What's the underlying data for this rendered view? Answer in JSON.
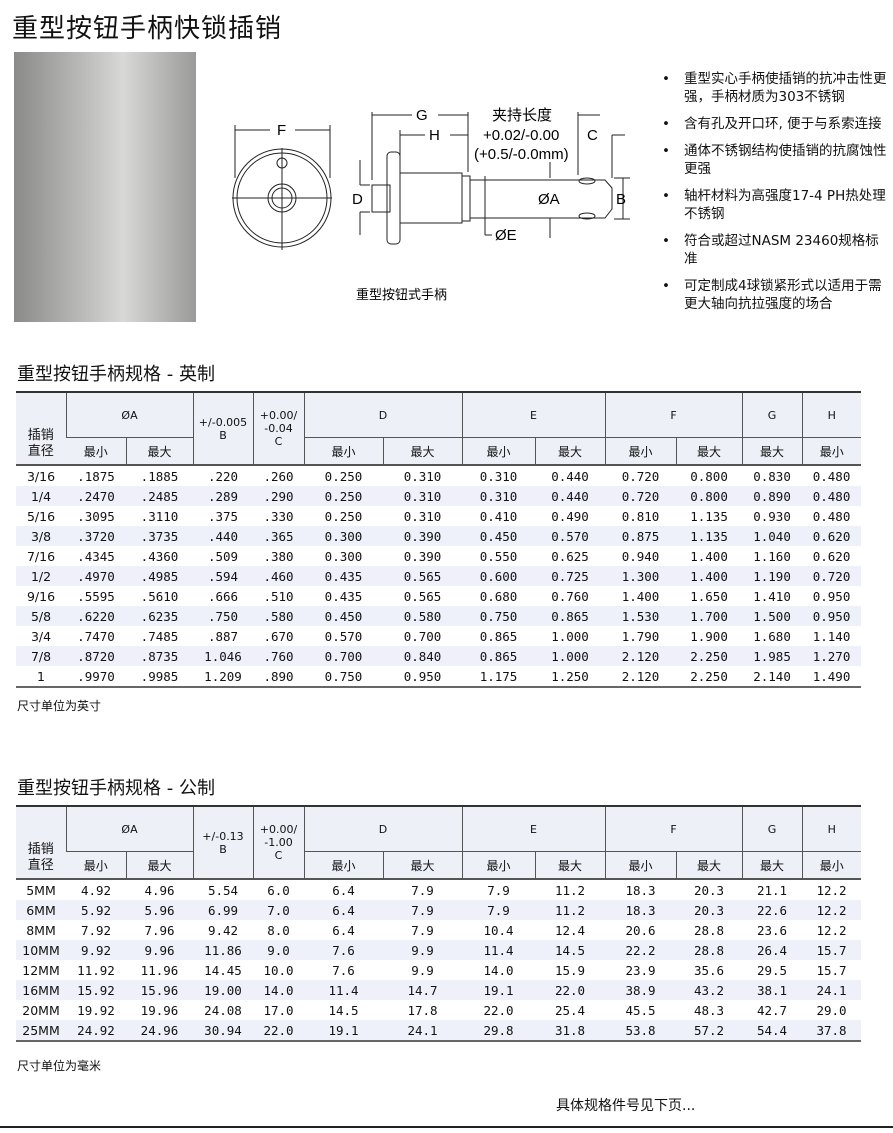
{
  "title": "重型按钮手柄快锁插销",
  "diagram": {
    "caption": "重型按钮式手柄",
    "grip_label": "夹持长度",
    "grip_tol_in": "+0.02/-0.00",
    "grip_tol_mm": "(+0.5/-0.0mm)",
    "labels": {
      "F": "F",
      "G": "G",
      "H": "H",
      "C": "C",
      "D": "D",
      "A": "ØA",
      "E": "ØE",
      "B": "B"
    }
  },
  "features": [
    "重型实心手柄使插销的抗冲击性更强，手柄材质为303不锈钢",
    "含有孔及开口环, 便于与系索连接",
    "通体不锈钢结构使插销的抗腐蚀性更强",
    "轴杆材料为高强度17-4 PH热处理不锈钢",
    "符合或超过NASM 23460规格标准",
    "可定制成4球锁紧形式以适用于需更大轴向抗拉强度的场合"
  ],
  "header": {
    "dia": "插销直径",
    "A": "ØA",
    "min": "最小",
    "max": "最大",
    "D": "D",
    "E": "E",
    "F": "F",
    "G": "G",
    "H": "H",
    "Bl": "B",
    "Cl": "C"
  },
  "imperial": {
    "title": "重型按钮手柄规格 - 英制",
    "b_tol": "+/-0.005",
    "c_tol": "+0.00/ -0.04",
    "note": "尺寸单位为英寸",
    "rows": [
      [
        "3/16",
        ".1875",
        ".1885",
        ".220",
        ".260",
        "0.250",
        "0.310",
        "0.310",
        "0.440",
        "0.720",
        "0.800",
        "0.830",
        "0.480"
      ],
      [
        "1/4",
        ".2470",
        ".2485",
        ".289",
        ".290",
        "0.250",
        "0.310",
        "0.310",
        "0.440",
        "0.720",
        "0.800",
        "0.890",
        "0.480"
      ],
      [
        "5/16",
        ".3095",
        ".3110",
        ".375",
        ".330",
        "0.250",
        "0.310",
        "0.410",
        "0.490",
        "0.810",
        "1.135",
        "0.930",
        "0.480"
      ],
      [
        "3/8",
        ".3720",
        ".3735",
        ".440",
        ".365",
        "0.300",
        "0.390",
        "0.450",
        "0.570",
        "0.875",
        "1.135",
        "1.040",
        "0.620"
      ],
      [
        "7/16",
        ".4345",
        ".4360",
        ".509",
        ".380",
        "0.300",
        "0.390",
        "0.550",
        "0.625",
        "0.940",
        "1.400",
        "1.160",
        "0.620"
      ],
      [
        "1/2",
        ".4970",
        ".4985",
        ".594",
        ".460",
        "0.435",
        "0.565",
        "0.600",
        "0.725",
        "1.300",
        "1.400",
        "1.190",
        "0.720"
      ],
      [
        "9/16",
        ".5595",
        ".5610",
        ".666",
        ".510",
        "0.435",
        "0.565",
        "0.680",
        "0.760",
        "1.400",
        "1.650",
        "1.410",
        "0.950"
      ],
      [
        "5/8",
        ".6220",
        ".6235",
        ".750",
        ".580",
        "0.450",
        "0.580",
        "0.750",
        "0.865",
        "1.530",
        "1.700",
        "1.500",
        "0.950"
      ],
      [
        "3/4",
        ".7470",
        ".7485",
        ".887",
        ".670",
        "0.570",
        "0.700",
        "0.865",
        "1.000",
        "1.790",
        "1.900",
        "1.680",
        "1.140"
      ],
      [
        "7/8",
        ".8720",
        ".8735",
        "1.046",
        ".760",
        "0.700",
        "0.840",
        "0.865",
        "1.000",
        "2.120",
        "2.250",
        "1.985",
        "1.270"
      ],
      [
        "1",
        ".9970",
        ".9985",
        "1.209",
        ".890",
        "0.750",
        "0.950",
        "1.175",
        "1.250",
        "2.120",
        "2.250",
        "2.140",
        "1.490"
      ]
    ]
  },
  "metric": {
    "title": "重型按钮手柄规格 - 公制",
    "b_tol": "+/-0.13",
    "c_tol": "+0.00/ -1.00",
    "note": "尺寸单位为毫米",
    "rows": [
      [
        "5MM",
        "4.92",
        "4.96",
        "5.54",
        "6.0",
        "6.4",
        "7.9",
        "7.9",
        "11.2",
        "18.3",
        "20.3",
        "21.1",
        "12.2"
      ],
      [
        "6MM",
        "5.92",
        "5.96",
        "6.99",
        "7.0",
        "6.4",
        "7.9",
        "7.9",
        "11.2",
        "18.3",
        "20.3",
        "22.6",
        "12.2"
      ],
      [
        "8MM",
        "7.92",
        "7.96",
        "9.42",
        "8.0",
        "6.4",
        "7.9",
        "10.4",
        "12.4",
        "20.6",
        "28.8",
        "23.6",
        "12.2"
      ],
      [
        "10MM",
        "9.92",
        "9.96",
        "11.86",
        "9.0",
        "7.6",
        "9.9",
        "11.4",
        "14.5",
        "22.2",
        "28.8",
        "26.4",
        "15.7"
      ],
      [
        "12MM",
        "11.92",
        "11.96",
        "14.45",
        "10.0",
        "7.6",
        "9.9",
        "14.0",
        "15.9",
        "23.9",
        "35.6",
        "29.5",
        "15.7"
      ],
      [
        "16MM",
        "15.92",
        "15.96",
        "19.00",
        "14.0",
        "11.4",
        "14.7",
        "19.1",
        "22.0",
        "38.9",
        "43.2",
        "38.1",
        "24.1"
      ],
      [
        "20MM",
        "19.92",
        "19.96",
        "24.08",
        "17.0",
        "14.5",
        "17.8",
        "22.0",
        "25.4",
        "45.5",
        "48.3",
        "42.7",
        "29.0"
      ],
      [
        "25MM",
        "24.92",
        "24.96",
        "30.94",
        "22.0",
        "19.1",
        "24.1",
        "29.8",
        "31.8",
        "53.8",
        "57.2",
        "54.4",
        "37.8"
      ]
    ]
  },
  "footer": "具体规格件号见下页..."
}
